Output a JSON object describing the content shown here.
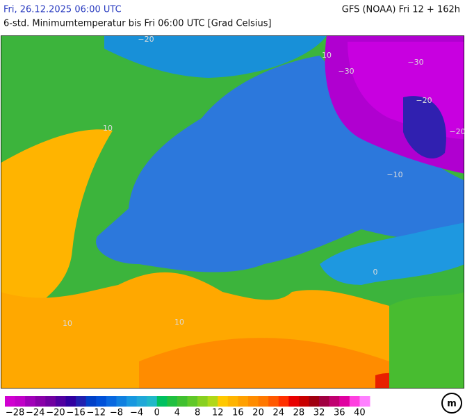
{
  "header": {
    "date": "Fri, 26.12.2025 06:00 UTC",
    "model": "GFS (NOAA) Fri 12 + 162h",
    "subtitle": "6-std. Minimumtemperatur bis Fri 06:00 UTC [Grad Celsius]"
  },
  "map": {
    "contour_labels": [
      "−20",
      "10",
      "10",
      "−30",
      "−30",
      "−20",
      "−20",
      "−10",
      "10",
      "10",
      "0"
    ]
  },
  "colorbar": {
    "labels": [
      "−28",
      "−24",
      "−20",
      "−16",
      "−12",
      "−8",
      "−4",
      "0",
      "4",
      "8",
      "12",
      "16",
      "20",
      "24",
      "28",
      "32",
      "36",
      "40"
    ],
    "colors": [
      "#d000d0",
      "#c000c8",
      "#a000b8",
      "#8800a8",
      "#7000a0",
      "#5000a0",
      "#3000a0",
      "#2020b0",
      "#0040c8",
      "#0050d8",
      "#0868e0",
      "#1080e0",
      "#1898e0",
      "#20a8d8",
      "#20b8c8",
      "#00c060",
      "#20c040",
      "#40c030",
      "#60c828",
      "#88d020",
      "#b0d818",
      "#ffc800",
      "#ffb400",
      "#ffa000",
      "#ff8c00",
      "#ff7800",
      "#ff5800",
      "#ff3000",
      "#e80000",
      "#c80000",
      "#a00010",
      "#a00040",
      "#c00070",
      "#e000a0",
      "#ff40e0",
      "#ff80ff"
    ]
  }
}
